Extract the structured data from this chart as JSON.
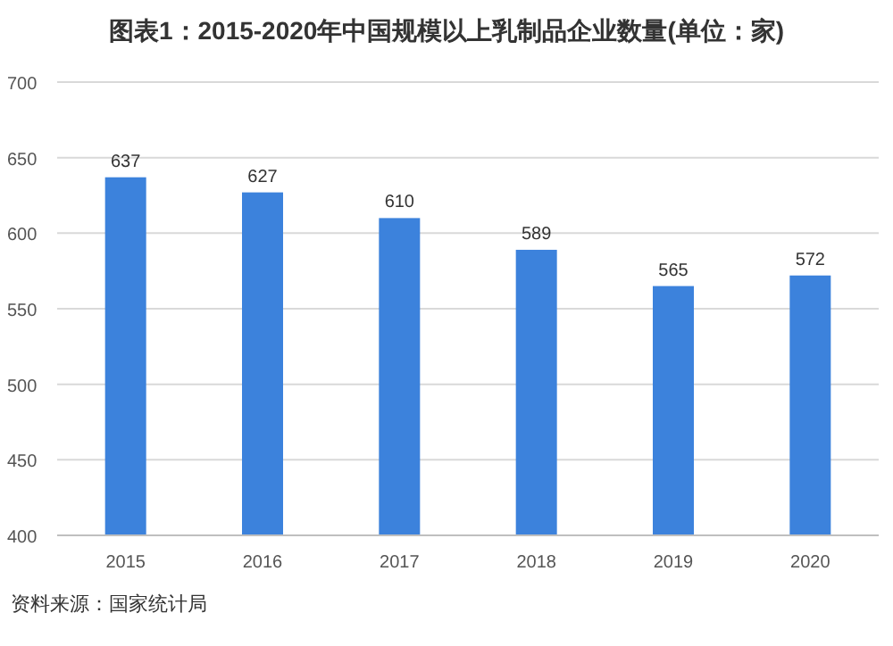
{
  "chart_data": {
    "type": "bar",
    "title": "图表1：2015-2020年中国规模以上乳制品企业数量(单位：家)",
    "categories": [
      "2015",
      "2016",
      "2017",
      "2018",
      "2019",
      "2020"
    ],
    "values": [
      637,
      627,
      610,
      589,
      565,
      572
    ],
    "color": "#3c82dc",
    "ylim": [
      400,
      700
    ],
    "yticks": [
      400,
      450,
      500,
      550,
      600,
      650,
      700
    ],
    "grid": "y",
    "data_labels": true,
    "annotations": [
      "资料来源：国家统计局"
    ]
  }
}
